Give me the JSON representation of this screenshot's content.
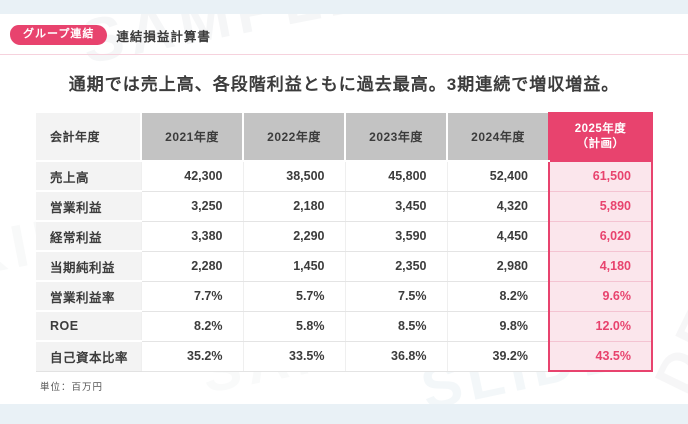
{
  "slide": {
    "badge": "グループ連結",
    "title": "連結損益計算書",
    "headline": "通期では売上高、各段階利益ともに過去最高。3期連続で増収増益。",
    "footnote": "単位：百万円"
  },
  "colors": {
    "accent_pink": "#e8436e",
    "plan_cell_bg": "#fbe6ec",
    "header_gray": "#c3c3c3",
    "label_column_bg": "#f3f3f3",
    "outer_band": "#e9f1f6",
    "text": "#3c3c3c"
  },
  "watermark": {
    "w1": "SAMPLE",
    "w2": "DESIGN",
    "w3": "KIMIYOU",
    "w4": "SLIDE",
    "w5": "SAMPLE"
  },
  "chart_data": {
    "type": "table",
    "columns": [
      "会計年度",
      "2021年度",
      "2022年度",
      "2023年度",
      "2024年度",
      "2025年度\n（計画）"
    ],
    "rows": [
      {
        "label": "売上高",
        "values": [
          "42,300",
          "38,500",
          "45,800",
          "52,400",
          "61,500"
        ]
      },
      {
        "label": "営業利益",
        "values": [
          "3,250",
          "2,180",
          "3,450",
          "4,320",
          "5,890"
        ]
      },
      {
        "label": "経常利益",
        "values": [
          "3,380",
          "2,290",
          "3,590",
          "4,450",
          "6,020"
        ]
      },
      {
        "label": "当期純利益",
        "values": [
          "2,280",
          "1,450",
          "2,350",
          "2,980",
          "4,180"
        ]
      },
      {
        "label": "営業利益率",
        "values": [
          "7.7%",
          "5.7%",
          "7.5%",
          "8.2%",
          "9.6%"
        ]
      },
      {
        "label": "ROE",
        "values": [
          "8.2%",
          "5.8%",
          "8.5%",
          "9.8%",
          "12.0%"
        ]
      },
      {
        "label": "自己資本比率",
        "values": [
          "35.2%",
          "33.5%",
          "36.8%",
          "39.2%",
          "43.5%"
        ]
      }
    ],
    "unit": "百万円",
    "highlight_column": "2025年度（計画）"
  }
}
